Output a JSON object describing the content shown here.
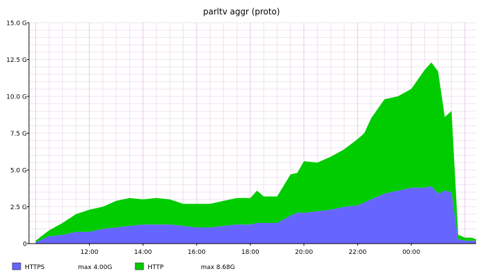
{
  "chart_data": {
    "type": "area",
    "title": "parltv aggr (proto)",
    "stacked": true,
    "x_range": [
      "09:45",
      "02:25"
    ],
    "ylim": [
      0,
      15.0
    ],
    "y_ticks": [
      "0",
      "2.5 G",
      "5.0 G",
      "7.5 G",
      "10.0 G",
      "12.5 G",
      "15.0 G"
    ],
    "x_ticks": [
      "12:00",
      "14:00",
      "16:00",
      "18:00",
      "20:00",
      "22:00",
      "00:00"
    ],
    "grid": true,
    "legend_position": "bottom",
    "x": [
      "10:00",
      "10:30",
      "11:00",
      "11:30",
      "12:00",
      "12:30",
      "13:00",
      "13:30",
      "14:00",
      "14:30",
      "15:00",
      "15:30",
      "16:00",
      "16:30",
      "17:00",
      "17:30",
      "18:00",
      "18:15",
      "18:30",
      "19:00",
      "19:30",
      "19:45",
      "20:00",
      "20:30",
      "21:00",
      "21:30",
      "22:00",
      "22:15",
      "22:30",
      "23:00",
      "23:30",
      "00:00",
      "00:30",
      "00:45",
      "01:00",
      "01:15",
      "01:30",
      "01:45",
      "02:00",
      "02:15",
      "02:25"
    ],
    "series": [
      {
        "name": "HTTPS",
        "color": "#6666ff",
        "max_label": "max  4.00G",
        "values": [
          0.1,
          0.5,
          0.6,
          0.8,
          0.8,
          1.0,
          1.1,
          1.2,
          1.3,
          1.3,
          1.3,
          1.2,
          1.1,
          1.1,
          1.2,
          1.3,
          1.3,
          1.4,
          1.4,
          1.4,
          1.9,
          2.1,
          2.1,
          2.2,
          2.3,
          2.5,
          2.6,
          2.8,
          3.0,
          3.4,
          3.6,
          3.8,
          3.8,
          3.9,
          3.4,
          3.6,
          3.5,
          0.3,
          0.2,
          0.2,
          0.2
        ]
      },
      {
        "name": "HTTP",
        "color": "#00cc00",
        "max_label": "max  8.68G",
        "values": [
          0.1,
          0.4,
          0.8,
          1.2,
          1.5,
          1.5,
          1.8,
          1.9,
          1.7,
          1.8,
          1.7,
          1.5,
          1.6,
          1.6,
          1.7,
          1.8,
          1.8,
          2.2,
          1.8,
          1.8,
          2.8,
          2.7,
          3.5,
          3.3,
          3.6,
          3.9,
          4.5,
          4.7,
          5.5,
          6.4,
          6.4,
          6.7,
          8.0,
          8.4,
          8.3,
          5.0,
          5.5,
          0.3,
          0.2,
          0.2,
          0.1
        ]
      }
    ]
  }
}
